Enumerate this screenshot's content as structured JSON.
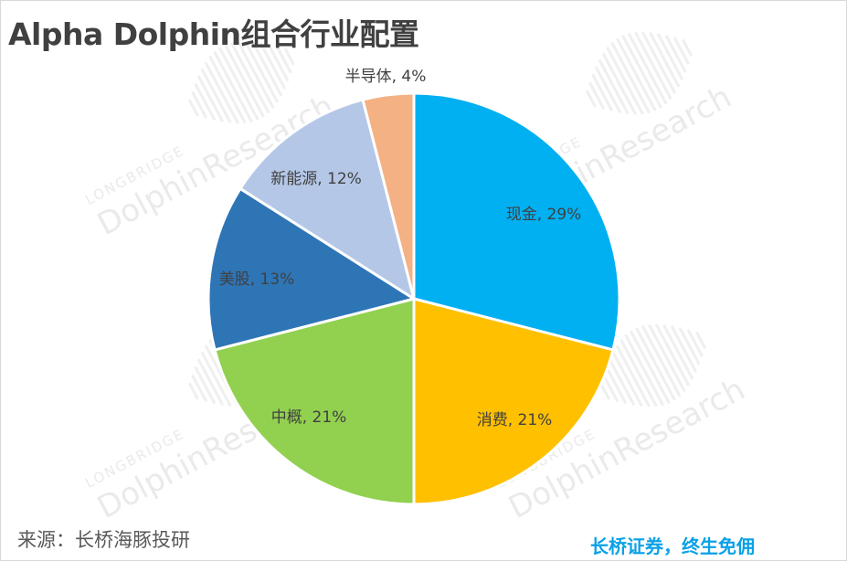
{
  "title": "Alpha Dolphin组合行业配置",
  "source": "来源：长桥海豚投研",
  "slogan": "长桥证券，终生免佣",
  "watermark": {
    "brand": "LONGBRIDGE",
    "name": "DolphinResearch"
  },
  "chart_data": {
    "type": "pie",
    "title": "Alpha Dolphin组合行业配置",
    "start_angle": "12 o'clock",
    "direction": "clockwise",
    "slices": [
      {
        "label": "现金, 29%",
        "category": "现金",
        "value": 29,
        "color": "#00b0f0"
      },
      {
        "label": "消费, 21%",
        "category": "消费",
        "value": 21,
        "color": "#ffc000"
      },
      {
        "label": "中概, 21%",
        "category": "中概",
        "value": 21,
        "color": "#92d050"
      },
      {
        "label": "美股, 13%",
        "category": "美股",
        "value": 13,
        "color": "#2e75b6"
      },
      {
        "label": "新能源, 12%",
        "category": "新能源",
        "value": 12,
        "color": "#b4c7e7"
      },
      {
        "label": "半导体, 4%",
        "category": "半导体",
        "value": 4,
        "color": "#f4b183"
      }
    ]
  }
}
